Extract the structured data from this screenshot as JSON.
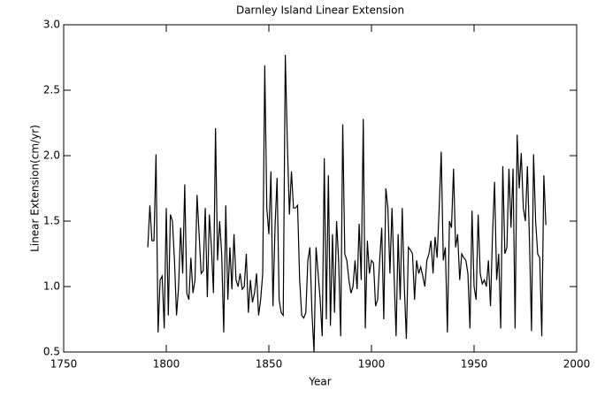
{
  "chart_data": {
    "type": "line",
    "title": "Darnley Island Linear Extension",
    "xlabel": "Year",
    "ylabel": "Linear Extension(cm/yr)",
    "x": [
      1791,
      1792,
      1793,
      1794,
      1795,
      1796,
      1797,
      1798,
      1799,
      1800,
      1801,
      1802,
      1803,
      1804,
      1805,
      1806,
      1807,
      1808,
      1809,
      1810,
      1811,
      1812,
      1813,
      1814,
      1815,
      1816,
      1817,
      1818,
      1819,
      1820,
      1821,
      1822,
      1823,
      1824,
      1825,
      1826,
      1827,
      1828,
      1829,
      1830,
      1831,
      1832,
      1833,
      1834,
      1835,
      1836,
      1837,
      1838,
      1839,
      1840,
      1841,
      1842,
      1843,
      1844,
      1845,
      1846,
      1847,
      1848,
      1849,
      1850,
      1851,
      1852,
      1853,
      1854,
      1855,
      1856,
      1857,
      1858,
      1859,
      1860,
      1861,
      1862,
      1863,
      1864,
      1865,
      1866,
      1867,
      1868,
      1869,
      1870,
      1871,
      1872,
      1873,
      1874,
      1875,
      1876,
      1877,
      1878,
      1879,
      1880,
      1881,
      1882,
      1883,
      1884,
      1885,
      1886,
      1887,
      1888,
      1889,
      1890,
      1891,
      1892,
      1893,
      1894,
      1895,
      1896,
      1897,
      1898,
      1899,
      1900,
      1901,
      1902,
      1903,
      1904,
      1905,
      1906,
      1907,
      1908,
      1909,
      1910,
      1911,
      1912,
      1913,
      1914,
      1915,
      1916,
      1917,
      1918,
      1919,
      1920,
      1921,
      1922,
      1923,
      1924,
      1925,
      1926,
      1927,
      1928,
      1929,
      1930,
      1931,
      1932,
      1933,
      1934,
      1935,
      1936,
      1937,
      1938,
      1939,
      1940,
      1941,
      1942,
      1943,
      1944,
      1945,
      1946,
      1947,
      1948,
      1949,
      1950,
      1951,
      1952,
      1953,
      1954,
      1955,
      1956,
      1957,
      1958,
      1959,
      1960,
      1961,
      1962,
      1963,
      1964,
      1965,
      1966,
      1967,
      1968,
      1969,
      1970,
      1971,
      1972,
      1973,
      1974,
      1975,
      1976,
      1977,
      1978,
      1979,
      1980,
      1981,
      1982,
      1983,
      1984,
      1985
    ],
    "series": [
      {
        "color": "#000000",
        "values": [
          1.3,
          1.62,
          1.35,
          1.35,
          2.01,
          0.65,
          1.05,
          1.08,
          0.68,
          1.6,
          0.78,
          1.55,
          1.5,
          1.2,
          0.78,
          1.0,
          1.45,
          1.1,
          1.78,
          0.95,
          0.9,
          1.22,
          0.95,
          1.05,
          1.7,
          1.4,
          1.1,
          1.12,
          1.6,
          0.92,
          1.55,
          1.3,
          0.95,
          2.21,
          1.2,
          1.5,
          1.25,
          0.65,
          1.62,
          0.9,
          1.3,
          0.98,
          1.4,
          1.05,
          1.0,
          1.1,
          0.98,
          1.0,
          1.25,
          0.8,
          1.05,
          0.88,
          0.95,
          1.1,
          0.78,
          0.9,
          1.1,
          2.69,
          1.6,
          1.4,
          1.88,
          0.85,
          1.45,
          1.83,
          0.9,
          0.8,
          0.78,
          2.77,
          2.1,
          1.55,
          1.88,
          1.6,
          1.6,
          1.62,
          1.05,
          0.78,
          0.76,
          0.8,
          1.2,
          1.3,
          0.8,
          0.5,
          1.3,
          1.1,
          0.9,
          0.62,
          1.98,
          0.75,
          1.85,
          0.7,
          1.4,
          0.8,
          1.5,
          1.2,
          0.62,
          2.24,
          1.25,
          1.2,
          1.05,
          0.95,
          1.0,
          1.2,
          0.98,
          1.48,
          1.05,
          2.28,
          0.68,
          1.35,
          1.1,
          1.2,
          1.18,
          0.85,
          0.9,
          1.2,
          1.45,
          0.75,
          1.75,
          1.6,
          1.1,
          1.6,
          1.1,
          0.62,
          1.4,
          0.9,
          1.6,
          1.0,
          0.6,
          1.3,
          1.28,
          1.25,
          0.9,
          1.2,
          1.1,
          1.15,
          1.08,
          1.0,
          1.2,
          1.25,
          1.35,
          1.1,
          1.38,
          1.22,
          1.6,
          2.03,
          1.2,
          1.3,
          0.65,
          1.5,
          1.45,
          1.9,
          1.3,
          1.4,
          1.05,
          1.25,
          1.22,
          1.2,
          1.1,
          0.68,
          1.58,
          1.0,
          0.9,
          1.55,
          1.1,
          1.02,
          1.05,
          1.0,
          1.2,
          0.85,
          1.4,
          1.8,
          1.05,
          1.25,
          0.68,
          1.92,
          1.25,
          1.3,
          1.9,
          1.45,
          1.9,
          0.68,
          2.16,
          1.75,
          2.02,
          1.6,
          1.5,
          1.92,
          1.35,
          0.66,
          2.01,
          1.5,
          1.25,
          1.22,
          0.62,
          1.85,
          1.47
        ]
      }
    ],
    "xlim": [
      1750,
      2000
    ],
    "xticks": [
      1750,
      1800,
      1850,
      1900,
      1950,
      2000
    ],
    "ylim": [
      0.5,
      3.0
    ],
    "yticks": [
      0.5,
      {
        "value": 1.0,
        "label": "1.0"
      },
      1.5,
      {
        "value": 2.0,
        "label": "2.0"
      },
      2.5,
      {
        "value": 3.0,
        "label": "3.0"
      }
    ]
  }
}
